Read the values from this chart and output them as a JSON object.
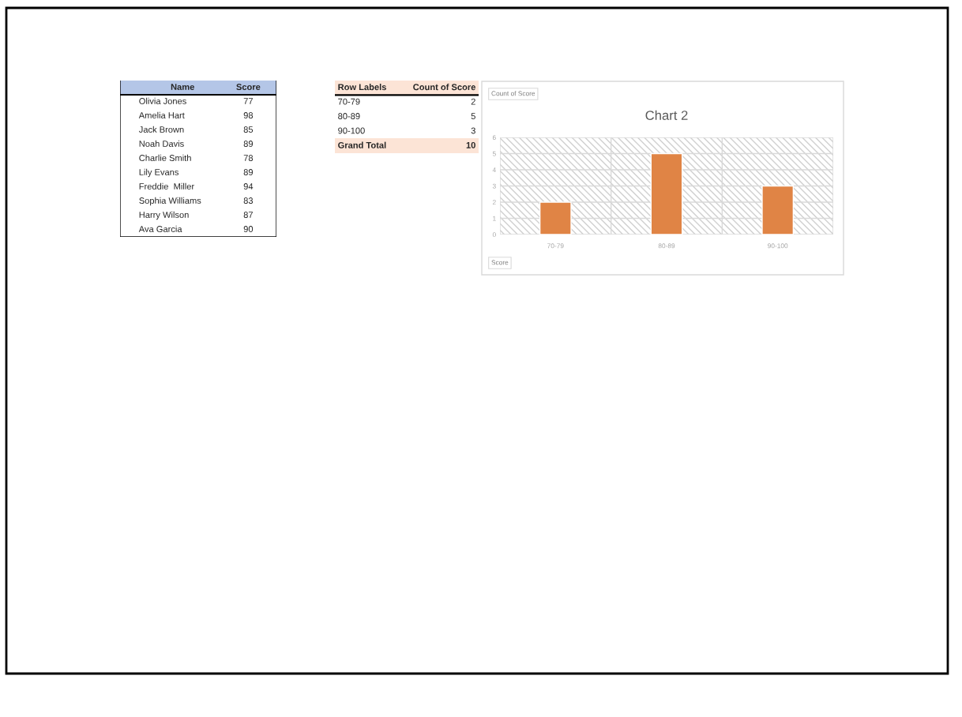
{
  "chart_data": [
    {
      "type": "other",
      "xlabel": "Name",
      "ylabel": "Score",
      "categories": [
        "Olivia Jones",
        "Amelia Hart",
        "Jack Brown",
        "Noah Davis",
        "Charlie Smith",
        "Lily Evans",
        "Freddie  Miller",
        "Sophia Williams",
        "Harry Wilson",
        "Ava Garcia"
      ],
      "values": [
        77,
        98,
        85,
        89,
        78,
        89,
        94,
        83,
        87,
        90
      ],
      "color": "#b4c6e7",
      "data_labels": true
    },
    {
      "type": "other",
      "xlabel": "Row Labels",
      "ylabel": "Count of Score",
      "categories": [
        "70-79",
        "80-89",
        "90-100",
        "Grand Total"
      ],
      "values": [
        2,
        5,
        3,
        10
      ],
      "color": "#fce4d6",
      "data_labels": true
    },
    {
      "type": "bar",
      "title": "Chart 2",
      "ylabel": "Count of Score",
      "xlabel": "Score",
      "categories": [
        "70-79",
        "80-89",
        "90-100"
      ],
      "values": [
        2,
        5,
        3
      ],
      "color": "#e08445",
      "ylim": [
        0,
        6
      ],
      "yticks": [
        0,
        1,
        2,
        3,
        4,
        5,
        6
      ],
      "grid": true,
      "legend": false
    }
  ]
}
